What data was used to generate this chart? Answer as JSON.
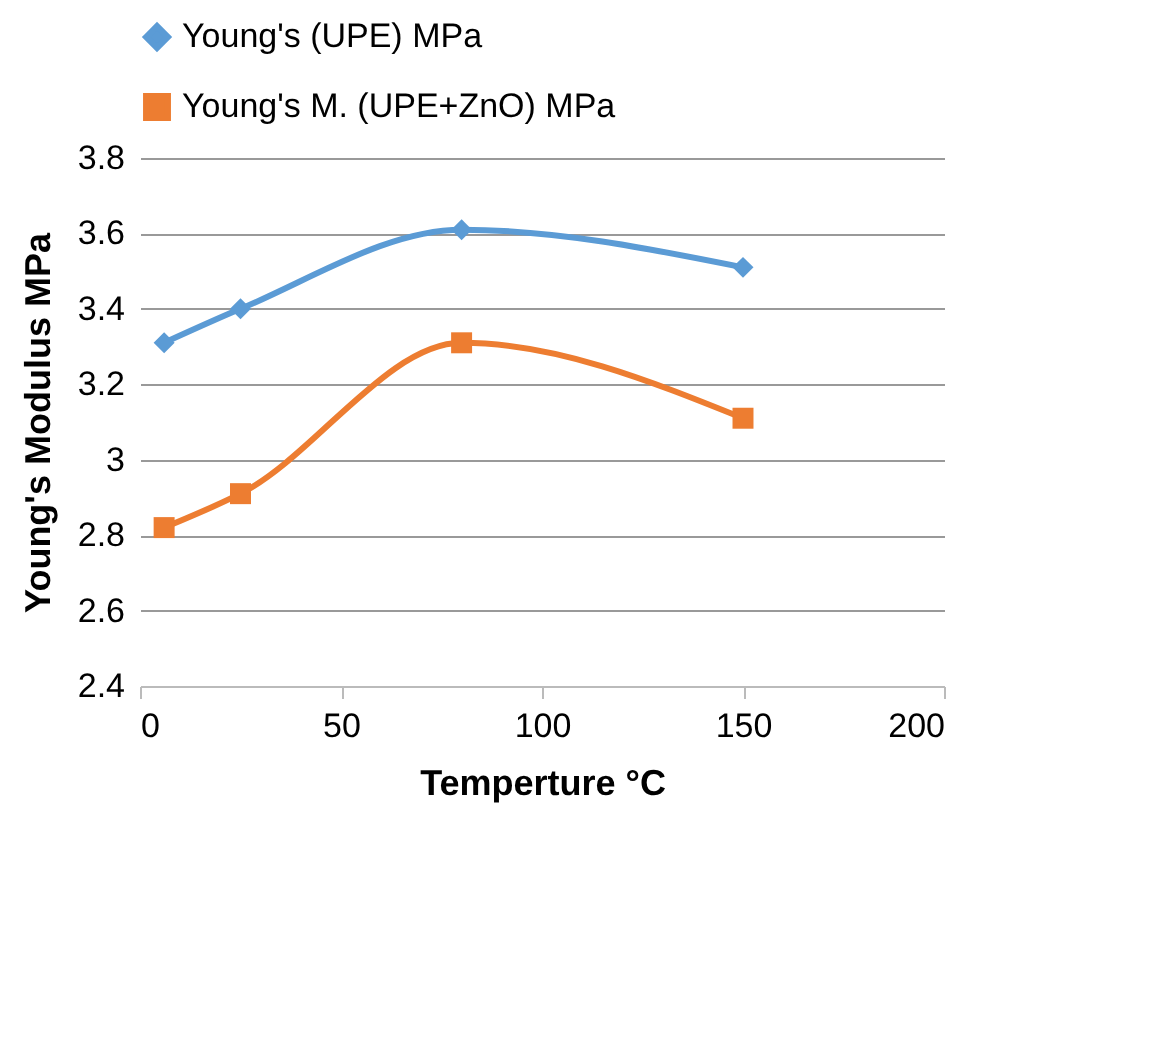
{
  "chart_data": {
    "type": "line",
    "xlabel": "Temperture °C",
    "ylabel": "Young's Modulus MPa",
    "x": [
      6,
      25,
      80,
      150
    ],
    "series": [
      {
        "name": "Young's (UPE) MPa",
        "color": "#5b9bd5",
        "marker": "diamond",
        "values": [
          3.31,
          3.4,
          3.61,
          3.51
        ]
      },
      {
        "name": "Young's M. (UPE+ZnO) MPa",
        "color": "#ed7d31",
        "marker": "square",
        "values": [
          2.82,
          2.91,
          3.31,
          3.11
        ]
      }
    ],
    "xlim": [
      0,
      200
    ],
    "xticks": [
      0,
      50,
      100,
      150,
      200
    ],
    "ylim": [
      2.4,
      3.8
    ],
    "yticks": [
      2.4,
      2.6,
      2.8,
      3,
      3.2,
      3.4,
      3.6,
      3.8
    ],
    "grid": "y",
    "legend": "top",
    "line_style": "solid"
  }
}
